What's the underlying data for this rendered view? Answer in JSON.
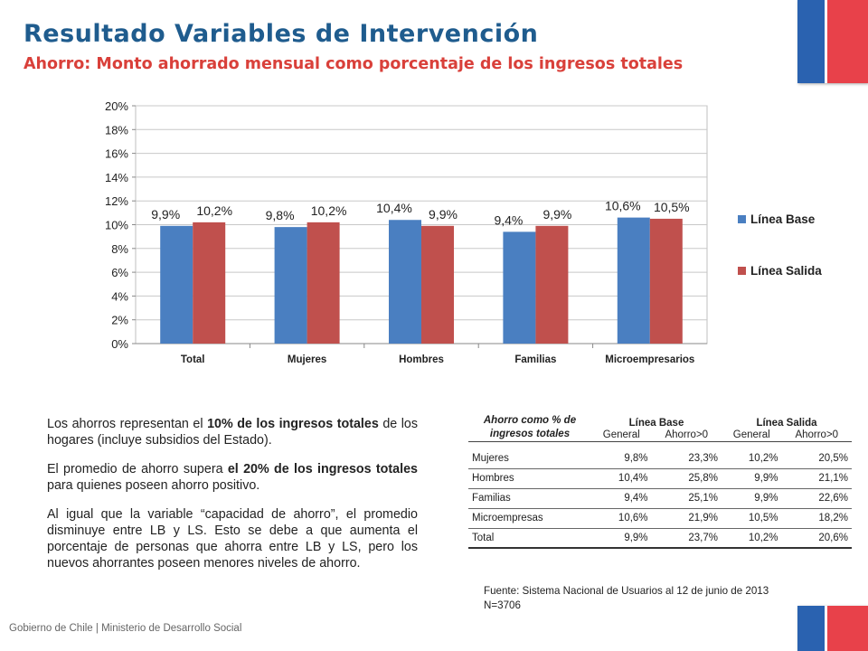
{
  "header": {
    "title": "Resultado Variables de Intervención",
    "subtitle": "Ahorro: Monto ahorrado mensual como porcentaje de los ingresos totales"
  },
  "colors": {
    "title": "#1f5c8e",
    "subtitle": "#d9403a",
    "linea_base": "#4a7fc1",
    "linea_salida": "#c0504d"
  },
  "chart_data": {
    "type": "bar",
    "categories": [
      "Total",
      "Mujeres",
      "Hombres",
      "Familias",
      "Microempresarios"
    ],
    "series": [
      {
        "name": "Línea Base",
        "values": [
          9.9,
          9.8,
          10.4,
          9.4,
          10.6
        ],
        "labels": [
          "9,9%",
          "9,8%",
          "10,4%",
          "9,4%",
          "10,6%"
        ]
      },
      {
        "name": "Línea Salida",
        "values": [
          10.2,
          10.2,
          9.9,
          9.9,
          10.5
        ],
        "labels": [
          "10,2%",
          "10,2%",
          "9,9%",
          "9,9%",
          "10,5%"
        ]
      }
    ],
    "yticks": [
      "0%",
      "2%",
      "4%",
      "6%",
      "8%",
      "10%",
      "12%",
      "14%",
      "16%",
      "18%",
      "20%"
    ],
    "ylim": [
      0,
      20
    ],
    "grid": true,
    "legend_position": "right"
  },
  "description": {
    "p1_a": "Los ahorros representan el ",
    "p1_b": "10% de los ingresos totales",
    "p1_c": " de los hogares (incluye subsidios del Estado).",
    "p2_a": "El promedio de ahorro supera ",
    "p2_b": "el 20% de los ingresos totales",
    "p2_c": " para quienes poseen ahorro positivo.",
    "p3": "Al igual que la variable “capacidad de ahorro”, el promedio disminuye entre LB y LS. Esto se debe a que aumenta el porcentaje de personas que ahorra entre LB y LS, pero los nuevos ahorrantes poseen menores niveles de ahorro."
  },
  "table": {
    "stub_header": "Ahorro como % de ingresos totales",
    "group_headers": [
      "Línea Base",
      "Línea Salida"
    ],
    "sub_headers": [
      "General",
      "Ahorro>0",
      "General",
      "Ahorro>0"
    ],
    "rows": [
      {
        "label": "Mujeres",
        "cells": [
          "9,8%",
          "23,3%",
          "10,2%",
          "20,5%"
        ]
      },
      {
        "label": "Hombres",
        "cells": [
          "10,4%",
          "25,8%",
          "9,9%",
          "21,1%"
        ]
      },
      {
        "label": "Familias",
        "cells": [
          "9,4%",
          "25,1%",
          "9,9%",
          "22,6%"
        ]
      },
      {
        "label": "Microempresas",
        "cells": [
          "10,6%",
          "21,9%",
          "10,5%",
          "18,2%"
        ]
      },
      {
        "label": "Total",
        "cells": [
          "9,9%",
          "23,7%",
          "10,2%",
          "20,6%"
        ]
      }
    ]
  },
  "source": {
    "line1": "Fuente: Sistema Nacional de Usuarios al 12 de junio de 2013",
    "line2": "N=3706"
  },
  "footer": "Gobierno de Chile | Ministerio de Desarrollo Social"
}
